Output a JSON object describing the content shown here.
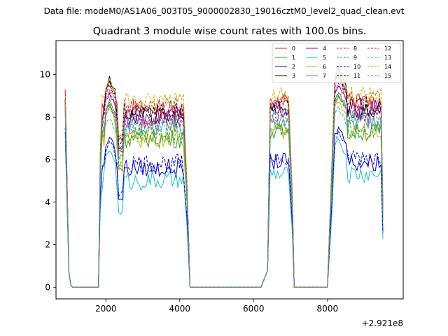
{
  "suptitle": "Data file: modeM0/AS1A06_003T05_9000002830_19016cztM0_level2_quad_clean.evt",
  "chart_data": {
    "type": "line",
    "title": "Quadrant 3 module wise count rates with 100.0s bins.",
    "xlabel": "",
    "ylabel": "",
    "x_offset_label": "+2.921e8",
    "xlim": [
      650,
      10050
    ],
    "ylim": [
      -0.55,
      11.6
    ],
    "xticks": [
      2000,
      4000,
      6000,
      8000
    ],
    "xtick_labels": [
      "2000",
      "4000",
      "6000",
      "8000"
    ],
    "yticks": [
      0,
      2,
      4,
      6,
      8,
      10
    ],
    "ytick_labels": [
      "0",
      "2",
      "4",
      "6",
      "8",
      "10"
    ],
    "grid": false,
    "legend_position": "top-right",
    "x_segments": [
      [
        900,
        4300
      ],
      [
        6300,
        7100
      ],
      [
        8100,
        9500
      ]
    ],
    "zero_segments": [
      [
        1100,
        1800
      ],
      [
        4300,
        6200
      ],
      [
        7100,
        8000
      ]
    ],
    "series": [
      {
        "name": "0",
        "color": "#d62728",
        "dash": false,
        "level": 8.4,
        "edge_start": 9.2,
        "peak": 9.6
      },
      {
        "name": "1",
        "color": "#2ca02c",
        "dash": false,
        "level": 7.0,
        "edge_start": 8.7,
        "peak": 8.8
      },
      {
        "name": "2",
        "color": "#0000ee",
        "dash": false,
        "level": 5.6,
        "edge_start": 7.3,
        "peak": 7.1
      },
      {
        "name": "3",
        "color": "#000000",
        "dash": false,
        "level": 8.0,
        "edge_start": 8.9,
        "peak": 9.8
      },
      {
        "name": "4",
        "color": "#a000a0",
        "dash": false,
        "level": 8.1,
        "edge_start": 8.8,
        "peak": 9.1
      },
      {
        "name": "5",
        "color": "#17becf",
        "dash": false,
        "level": 5.0,
        "edge_start": 7.0,
        "peak": 6.5
      },
      {
        "name": "6",
        "color": "#c8b400",
        "dash": false,
        "level": 7.0,
        "edge_start": 8.6,
        "peak": 8.4
      },
      {
        "name": "7",
        "color": "#7f7f7f",
        "dash": false,
        "level": 7.5,
        "edge_start": 8.2,
        "peak": 8.6
      },
      {
        "name": "8",
        "color": "#d62728",
        "dash": true,
        "level": 8.5,
        "edge_start": 9.3,
        "peak": 9.4
      },
      {
        "name": "9",
        "color": "#2ca02c",
        "dash": true,
        "level": 7.2,
        "edge_start": 8.4,
        "peak": 8.6
      },
      {
        "name": "10",
        "color": "#0000ee",
        "dash": true,
        "level": 5.8,
        "edge_start": 7.5,
        "peak": 6.9
      },
      {
        "name": "11",
        "color": "#000000",
        "dash": true,
        "level": 8.2,
        "edge_start": 8.8,
        "peak": 9.6
      },
      {
        "name": "12",
        "color": "#c000c0",
        "dash": true,
        "level": 7.9,
        "edge_start": 8.6,
        "peak": 9.2
      },
      {
        "name": "13",
        "color": "#17becf",
        "dash": true,
        "level": 7.6,
        "edge_start": 8.3,
        "peak": 8.0
      },
      {
        "name": "14",
        "color": "#c8b400",
        "dash": true,
        "level": 8.7,
        "edge_start": 9.0,
        "peak": 9.7
      },
      {
        "name": "15",
        "color": "#7f7f7f",
        "dash": true,
        "level": 7.8,
        "edge_start": 8.4,
        "peak": 8.7
      }
    ]
  }
}
